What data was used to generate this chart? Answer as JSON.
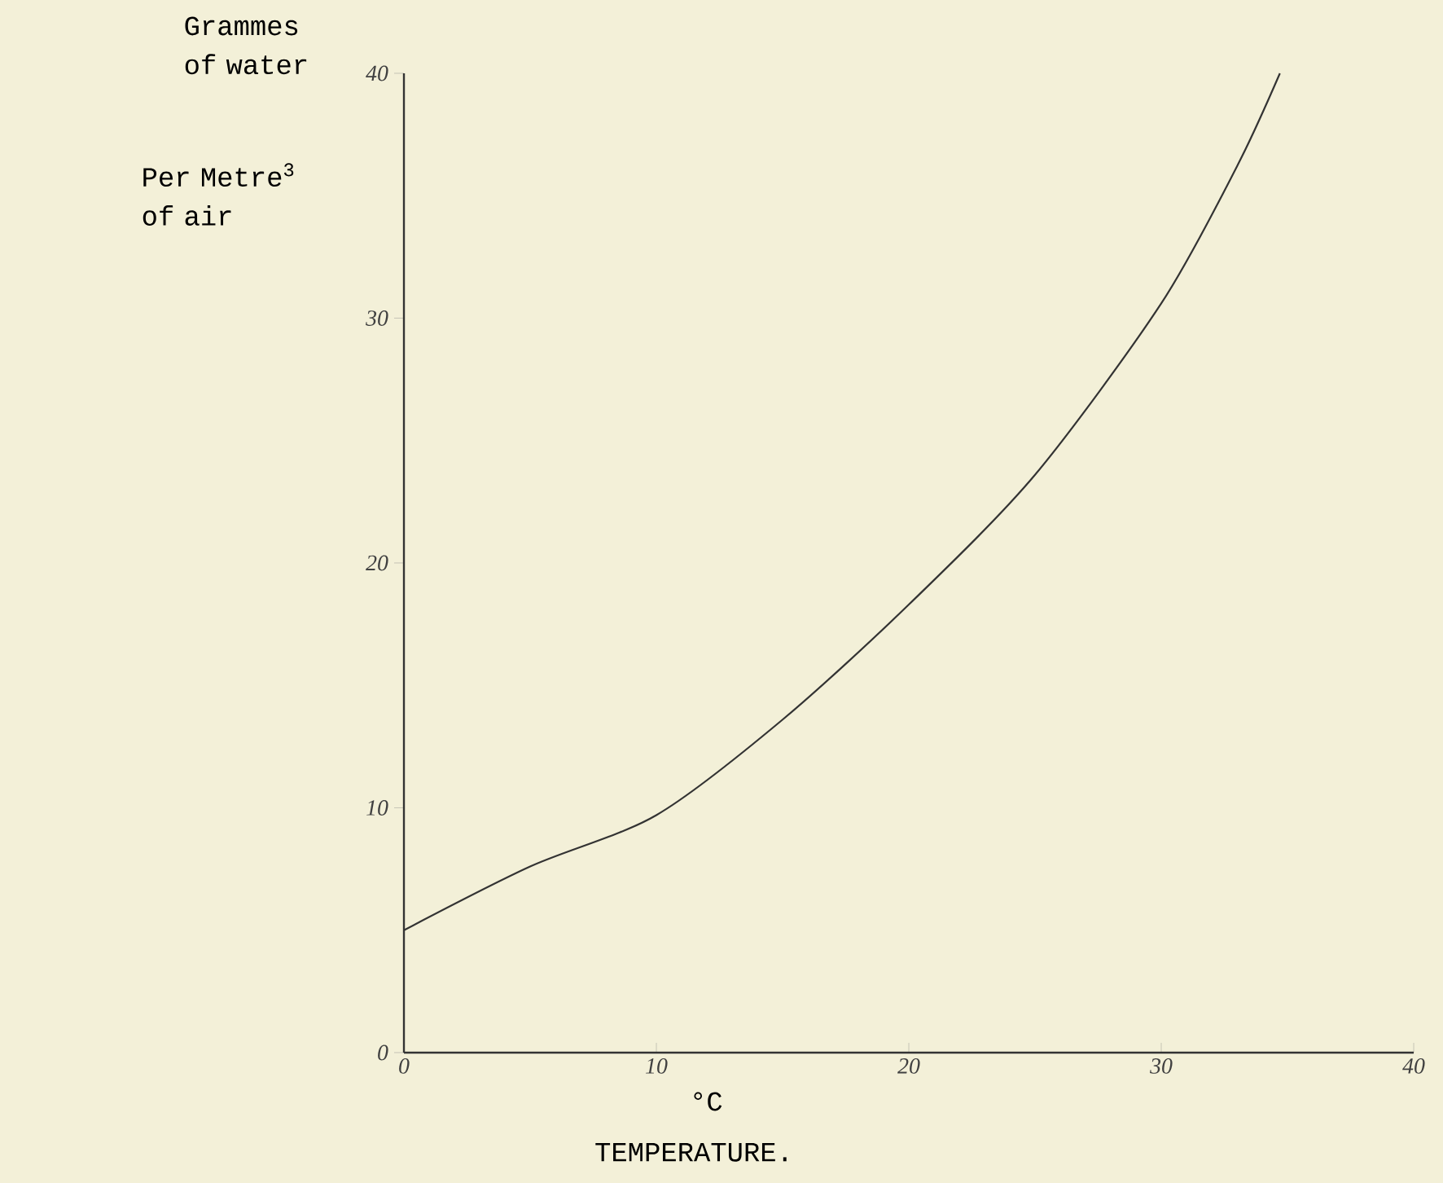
{
  "chart_data": {
    "type": "line",
    "xlabel": "TEMPERATURE.",
    "ylabel": "Grammes of water",
    "annotations": [
      "°C",
      "Per Metre$^{3}$ of air"
    ],
    "x": [
      0,
      5,
      10,
      15,
      20,
      25,
      30,
      33,
      34.7
    ],
    "series": [
      {
        "color": "#333333",
        "values": [
          5,
          7.6,
          9.7,
          13.6,
          18.3,
          23.6,
          30.6,
          36.2,
          40
        ]
      }
    ],
    "xlim": [
      0,
      40
    ],
    "ylim": [
      0,
      40
    ],
    "xticks": [
      0,
      10,
      20,
      30,
      40
    ],
    "yticks": [
      0,
      10,
      20,
      30,
      40
    ],
    "grid": false,
    "marker": "none",
    "line_style": "solid"
  }
}
